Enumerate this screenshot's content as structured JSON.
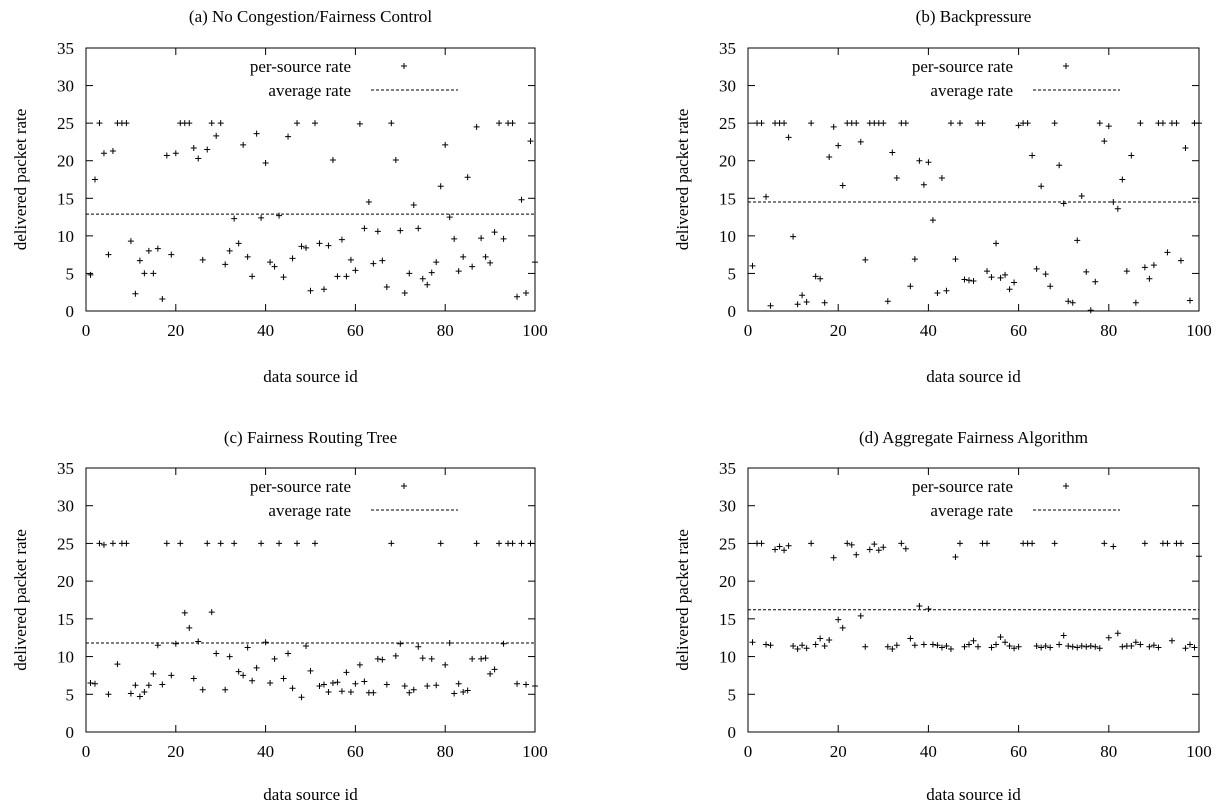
{
  "chart_data": [
    {
      "type": "scatter",
      "title": "(a) No Congestion/Fairness Control",
      "xlabel": "data source id",
      "ylabel": "delivered packet rate",
      "xlim": [
        0,
        100
      ],
      "ylim": [
        0,
        35
      ],
      "xticks": [
        0,
        20,
        40,
        60,
        80,
        100
      ],
      "yticks": [
        0,
        5,
        10,
        15,
        20,
        25,
        30,
        35
      ],
      "legend": {
        "position": "top",
        "entries": [
          "per-source rate",
          "average rate"
        ]
      },
      "average": 12.9,
      "series": [
        {
          "name": "per-source rate",
          "x": [
            1,
            2,
            3,
            4,
            5,
            6,
            7,
            8,
            9,
            10,
            11,
            12,
            13,
            14,
            15,
            16,
            17,
            18,
            19,
            20,
            21,
            22,
            23,
            24,
            25,
            26,
            27,
            28,
            29,
            30,
            31,
            32,
            33,
            34,
            35,
            36,
            37,
            38,
            39,
            40,
            41,
            42,
            43,
            44,
            45,
            46,
            47,
            48,
            49,
            50,
            51,
            52,
            53,
            54,
            55,
            56,
            57,
            58,
            59,
            60,
            61,
            62,
            63,
            64,
            65,
            66,
            67,
            68,
            69,
            70,
            71,
            72,
            73,
            74,
            75,
            76,
            77,
            78,
            79,
            80,
            81,
            82,
            83,
            84,
            85,
            86,
            87,
            88,
            89,
            90,
            91,
            92,
            93,
            94,
            95,
            96,
            97,
            98,
            99,
            100
          ],
          "y": [
            4.8,
            17.5,
            25,
            21,
            7.5,
            21.3,
            25,
            25,
            25,
            9.3,
            2.3,
            6.7,
            5,
            8,
            5,
            8.3,
            1.6,
            20.7,
            7.5,
            21,
            25,
            25,
            25,
            21.7,
            20.3,
            6.8,
            21.5,
            25,
            23.3,
            25,
            6.2,
            8,
            12.3,
            9,
            22.1,
            7.2,
            4.6,
            23.6,
            12.4,
            19.7,
            6.5,
            5.9,
            12.7,
            4.5,
            23.2,
            7,
            25,
            8.6,
            8.4,
            2.7,
            25,
            9,
            2.9,
            8.7,
            20.1,
            4.6,
            9.5,
            4.6,
            6.8,
            5.4,
            24.9,
            11,
            14.5,
            6.3,
            10.6,
            6.7,
            3.2,
            25,
            20.1,
            10.7,
            2.4,
            5,
            14.1,
            11,
            4.3,
            3.5,
            5.1,
            6.5,
            16.6,
            22.1,
            12.5,
            9.6,
            5.3,
            7.2,
            17.8,
            5.9,
            24.5,
            9.7,
            7.2,
            6.4,
            10.5,
            25,
            9.6,
            25,
            25,
            1.9,
            14.8,
            2.4,
            22.6,
            6.5
          ]
        }
      ]
    },
    {
      "type": "scatter",
      "title": "(b) Backpressure",
      "xlabel": "data source id",
      "ylabel": "delivered packet rate",
      "xlim": [
        0,
        100
      ],
      "ylim": [
        0,
        35
      ],
      "xticks": [
        0,
        20,
        40,
        60,
        80,
        100
      ],
      "yticks": [
        0,
        5,
        10,
        15,
        20,
        25,
        30,
        35
      ],
      "legend": {
        "position": "top",
        "entries": [
          "per-source rate",
          "average rate"
        ]
      },
      "average": 14.5,
      "series": [
        {
          "name": "per-source rate",
          "x": [
            1,
            2,
            3,
            4,
            5,
            6,
            7,
            8,
            9,
            10,
            11,
            12,
            13,
            14,
            15,
            16,
            17,
            18,
            19,
            20,
            21,
            22,
            23,
            24,
            25,
            26,
            27,
            28,
            29,
            30,
            31,
            32,
            33,
            34,
            35,
            36,
            37,
            38,
            39,
            40,
            41,
            42,
            43,
            44,
            45,
            46,
            47,
            48,
            49,
            50,
            51,
            52,
            53,
            54,
            55,
            56,
            57,
            58,
            59,
            60,
            61,
            62,
            63,
            64,
            65,
            66,
            67,
            68,
            69,
            70,
            71,
            72,
            73,
            74,
            75,
            76,
            77,
            78,
            79,
            80,
            81,
            82,
            83,
            84,
            85,
            86,
            87,
            88,
            89,
            90,
            91,
            92,
            93,
            94,
            95,
            96,
            97,
            98,
            99,
            100
          ],
          "y": [
            6,
            25,
            25,
            15.2,
            0.7,
            25,
            25,
            25,
            23.1,
            9.9,
            0.9,
            2.1,
            1.2,
            25,
            4.6,
            4.3,
            1.1,
            20.5,
            24.5,
            22,
            16.7,
            25,
            25,
            25,
            22.5,
            6.8,
            25,
            25,
            25,
            25,
            1.3,
            21.1,
            17.7,
            25,
            25,
            3.3,
            6.9,
            20,
            16.8,
            19.8,
            12.1,
            2.4,
            17.7,
            2.7,
            25,
            6.9,
            25,
            4.2,
            4.1,
            4,
            25,
            25,
            5.3,
            4.5,
            9,
            4.4,
            4.8,
            2.9,
            3.8,
            24.7,
            25,
            25,
            20.7,
            5.6,
            16.6,
            4.9,
            3.3,
            25,
            19.4,
            14.3,
            1.3,
            1.1,
            9.4,
            15.3,
            5.2,
            0.1,
            3.9,
            25,
            22.6,
            24.6,
            14.5,
            13.6,
            17.5,
            5.3,
            20.7,
            1.1,
            25,
            5.8,
            4.3,
            6.1,
            25,
            25,
            7.8,
            25,
            25,
            6.7,
            21.7,
            1.4,
            25,
            25
          ]
        }
      ]
    },
    {
      "type": "scatter",
      "title": "(c) Fairness Routing Tree",
      "xlabel": "data source id",
      "ylabel": "delivered packet rate",
      "xlim": [
        0,
        100
      ],
      "ylim": [
        0,
        35
      ],
      "xticks": [
        0,
        20,
        40,
        60,
        80,
        100
      ],
      "yticks": [
        0,
        5,
        10,
        15,
        20,
        25,
        30,
        35
      ],
      "legend": {
        "position": "top",
        "entries": [
          "per-source rate",
          "average rate"
        ]
      },
      "average": 11.8,
      "series": [
        {
          "name": "per-source rate",
          "x": [
            1,
            2,
            3,
            4,
            5,
            6,
            7,
            8,
            9,
            10,
            11,
            12,
            13,
            14,
            15,
            16,
            17,
            18,
            19,
            20,
            21,
            22,
            23,
            24,
            25,
            26,
            27,
            28,
            29,
            30,
            31,
            32,
            33,
            34,
            35,
            36,
            37,
            38,
            39,
            40,
            41,
            42,
            43,
            44,
            45,
            46,
            47,
            48,
            49,
            50,
            51,
            52,
            53,
            54,
            55,
            56,
            57,
            58,
            59,
            60,
            61,
            62,
            63,
            64,
            65,
            66,
            67,
            68,
            69,
            70,
            71,
            72,
            73,
            74,
            75,
            76,
            77,
            78,
            79,
            80,
            81,
            82,
            83,
            84,
            85,
            86,
            87,
            88,
            89,
            90,
            91,
            92,
            93,
            94,
            95,
            96,
            97,
            98,
            99,
            100
          ],
          "y": [
            6.5,
            6.4,
            25,
            24.8,
            5,
            25,
            9,
            25,
            25,
            5.1,
            6.2,
            4.7,
            5.3,
            6.2,
            7.7,
            11.5,
            6.3,
            25,
            7.5,
            11.7,
            25,
            15.8,
            13.8,
            7.1,
            12,
            5.6,
            25,
            15.9,
            10.4,
            25,
            5.6,
            10,
            25,
            8,
            7.5,
            11.2,
            6.8,
            8.5,
            25,
            11.9,
            6.5,
            9.7,
            25,
            7.1,
            10.4,
            5.8,
            25,
            4.6,
            11.4,
            8.1,
            25,
            6.1,
            6.3,
            5.3,
            6.5,
            6.6,
            5.4,
            7.9,
            5.3,
            6.4,
            8.9,
            6.7,
            5.2,
            5.2,
            9.7,
            9.6,
            6.3,
            25,
            10.1,
            11.7,
            6.1,
            5.2,
            5.6,
            11.3,
            9.8,
            6.1,
            9.7,
            6.2,
            25,
            8.9,
            11.8,
            5.1,
            6.4,
            5.3,
            5.5,
            9.7,
            25,
            9.7,
            9.8,
            7.7,
            8.3,
            25,
            11.7,
            25,
            25,
            6.4,
            25,
            6.3,
            25,
            6.1
          ]
        }
      ]
    },
    {
      "type": "scatter",
      "title": "(d) Aggregate Fairness Algorithm",
      "xlabel": "data source id",
      "ylabel": "delivered packet rate",
      "xlim": [
        0,
        100
      ],
      "ylim": [
        0,
        35
      ],
      "xticks": [
        0,
        20,
        40,
        60,
        80,
        100
      ],
      "yticks": [
        0,
        5,
        10,
        15,
        20,
        25,
        30,
        35
      ],
      "legend": {
        "position": "top",
        "entries": [
          "per-source rate",
          "average rate"
        ]
      },
      "average": 16.2,
      "series": [
        {
          "name": "per-source rate",
          "x": [
            1,
            2,
            3,
            4,
            5,
            6,
            7,
            8,
            9,
            10,
            11,
            12,
            13,
            14,
            15,
            16,
            17,
            18,
            19,
            20,
            21,
            22,
            23,
            24,
            25,
            26,
            27,
            28,
            29,
            30,
            31,
            32,
            33,
            34,
            35,
            36,
            37,
            38,
            39,
            40,
            41,
            42,
            43,
            44,
            45,
            46,
            47,
            48,
            49,
            50,
            51,
            52,
            53,
            54,
            55,
            56,
            57,
            58,
            59,
            60,
            61,
            62,
            63,
            64,
            65,
            66,
            67,
            68,
            69,
            70,
            71,
            72,
            73,
            74,
            75,
            76,
            77,
            78,
            79,
            80,
            81,
            82,
            83,
            84,
            85,
            86,
            87,
            88,
            89,
            90,
            91,
            92,
            93,
            94,
            95,
            96,
            97,
            98,
            99,
            100
          ],
          "y": [
            11.9,
            25,
            25,
            11.6,
            11.5,
            24.2,
            24.6,
            24.1,
            24.7,
            11.4,
            11,
            11.5,
            11.1,
            25,
            11.6,
            12.4,
            11.4,
            12.2,
            23.1,
            14.9,
            13.8,
            25,
            24.8,
            23.5,
            15.4,
            11.3,
            24.2,
            24.9,
            24.1,
            24.5,
            11.3,
            11,
            11.5,
            25,
            24.3,
            12.4,
            11.5,
            16.7,
            11.6,
            16.3,
            11.6,
            11.5,
            11.2,
            11.4,
            11,
            23.2,
            25,
            11.3,
            11.6,
            12.1,
            11.3,
            25,
            25,
            11.2,
            11.6,
            12.6,
            11.9,
            11.4,
            11.1,
            11.3,
            25,
            25,
            25,
            11.4,
            11.2,
            11.4,
            11.2,
            25,
            11.6,
            12.8,
            11.4,
            11.3,
            11.2,
            11.4,
            11.3,
            11.4,
            11.3,
            11.1,
            25,
            12.5,
            24.6,
            13.1,
            11.3,
            11.4,
            11.4,
            11.9,
            11.6,
            25,
            11.3,
            11.5,
            11.2,
            25,
            25,
            12.1,
            25,
            25,
            11.1,
            11.6,
            11.2,
            23.3
          ]
        }
      ]
    }
  ]
}
